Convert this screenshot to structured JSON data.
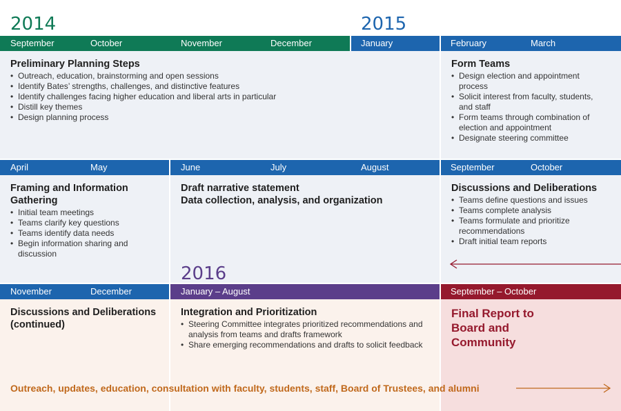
{
  "years": {
    "y2014": "2014",
    "y2015": "2015",
    "y2016": "2016"
  },
  "colors": {
    "green": "#0f7a56",
    "blue": "#1d65ae",
    "purple": "#5b3e8a",
    "maroon": "#95192d",
    "orange": "#c0691c",
    "cell_blue": "#eef1f6",
    "cell_warm": "#fbf2ec",
    "cell_pink": "#f6dede"
  },
  "row1": {
    "months": [
      "September",
      "October",
      "November",
      "December",
      "January",
      "February",
      "March"
    ],
    "prelim": {
      "title": "Preliminary Planning Steps",
      "items": [
        "Outreach, education, brainstorming and open sessions",
        "Identify Bates’ strengths, challenges, and distinctive features",
        "Identify challenges facing higher education and liberal arts in particular",
        "Distill key themes",
        "Design planning process"
      ]
    },
    "teams": {
      "title": "Form Teams",
      "items": [
        "Design election and appointment process",
        "Solicit interest from faculty, students, and staff",
        "Form teams through combination of election and appointment",
        "Designate steering committee"
      ]
    }
  },
  "row2": {
    "months": [
      "April",
      "May",
      "June",
      "July",
      "August",
      "September",
      "October"
    ],
    "framing": {
      "title": "Framing and Information Gathering",
      "items": [
        "Initial team meetings",
        "Teams clarify key questions",
        "Teams identify data needs",
        "Begin information sharing and discussion"
      ]
    },
    "draft": {
      "line1": "Draft narrative statement",
      "line2": "Data collection, analysis, and organization"
    },
    "discussions": {
      "title": "Discussions and Deliberations",
      "items": [
        "Teams define questions and issues",
        "Teams complete analysis",
        "Teams formulate and prioritize recommendations",
        "Draft initial team reports"
      ]
    }
  },
  "row3": {
    "months": [
      "November",
      "December"
    ],
    "jan_aug": "January – August",
    "sep_oct": "September – October",
    "cont": {
      "title": "Discussions and Deliberations (continued)"
    },
    "integration": {
      "title": "Integration and Prioritization",
      "items": [
        "Steering Committee integrates prioritized recommendations and analysis from teams and drafts framework",
        "Share emerging recommendations and drafts to solicit feedback"
      ]
    },
    "final": {
      "title": "Final Report to Board and Community"
    }
  },
  "footer": "Outreach, updates, education, consultation with faculty, students, staff, Board of Trustees, and alumni"
}
